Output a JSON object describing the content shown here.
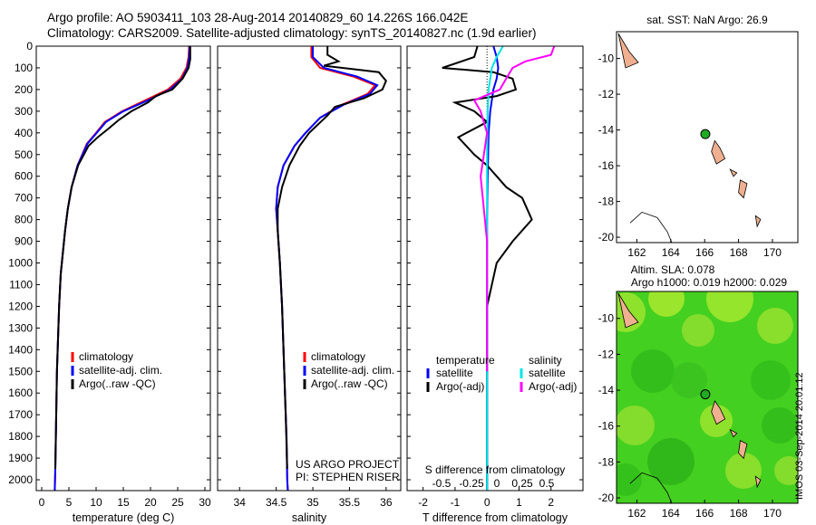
{
  "header": {
    "line1": "Argo profile: AO 5903411_103 28-Aug-2014 20140829_60 14.226S 166.042E",
    "line2": "Climatology: CARS2009. Satellite-adjusted climatology: synTS_20140827.nc (1.9d earlier)"
  },
  "stamp": "IMOS 03-Sep-2014 20:01:12",
  "colors": {
    "climatology": "#ff0000",
    "satellite": "#0000ff",
    "argo": "#000000",
    "sal_satellite": "#00e5e5",
    "sal_argo": "#ff00ff",
    "land": "#f0b090",
    "sla_field": "#44d020"
  },
  "chart_data": [
    {
      "type": "line",
      "panel": "temperature",
      "xlabel": "temperature (deg C)",
      "ylabel": "",
      "xlim": [
        -1,
        31
      ],
      "ylim": [
        2050,
        0
      ],
      "xticks": [
        0,
        5,
        10,
        15,
        20,
        25,
        30
      ],
      "yticks": [
        0,
        100,
        200,
        300,
        400,
        500,
        600,
        700,
        800,
        900,
        1000,
        1100,
        1200,
        1300,
        1400,
        1500,
        1600,
        1700,
        1800,
        1900,
        2000
      ],
      "legend": [
        "climatology",
        "satellite-adj. clim.",
        "Argo(..raw -QC)"
      ],
      "series": [
        {
          "name": "climatology",
          "color": "#ff0000",
          "x": [
            27.1,
            27.0,
            26.6,
            25.5,
            23.2,
            19.0,
            14.8,
            11.6,
            10.0,
            8.3,
            6.6,
            5.5,
            4.8,
            4.3,
            3.9,
            3.5,
            3.2,
            3.0,
            2.8,
            2.7,
            2.6,
            2.5,
            2.4,
            2.3
          ],
          "y": [
            0,
            50,
            100,
            150,
            200,
            250,
            300,
            350,
            400,
            450,
            550,
            650,
            750,
            850,
            950,
            1050,
            1200,
            1350,
            1500,
            1650,
            1800,
            1950,
            2050,
            2060
          ]
        },
        {
          "name": "satellite-adj. clim.",
          "color": "#0000ff",
          "x": [
            27.2,
            27.1,
            26.8,
            25.8,
            23.6,
            19.5,
            15.0,
            11.8,
            10.1,
            8.4,
            6.6,
            5.5,
            4.8,
            4.3,
            3.9,
            3.5,
            3.2,
            3.0,
            2.8,
            2.7,
            2.6,
            2.5,
            2.4,
            2.3
          ],
          "y": [
            0,
            50,
            100,
            150,
            200,
            250,
            300,
            350,
            400,
            450,
            550,
            650,
            750,
            850,
            950,
            1050,
            1200,
            1350,
            1500,
            1650,
            1800,
            1950,
            2050,
            2060
          ]
        },
        {
          "name": "Argo(..raw -QC)",
          "color": "#000000",
          "x": [
            27.3,
            27.3,
            27.0,
            25.9,
            24.0,
            21.0,
            19.5,
            16.5,
            14.2,
            12.3,
            10.3,
            8.6,
            6.7,
            5.5,
            4.8,
            4.3,
            3.9,
            3.5,
            3.2,
            3.0,
            2.8,
            2.7,
            2.6,
            2.5
          ],
          "y": [
            0,
            60,
            100,
            150,
            200,
            230,
            260,
            300,
            340,
            380,
            420,
            460,
            550,
            650,
            750,
            850,
            950,
            1050,
            1200,
            1350,
            1500,
            1650,
            1800,
            1950
          ]
        }
      ]
    },
    {
      "type": "line",
      "panel": "salinity",
      "xlabel": "salinity",
      "xlim": [
        33.7,
        36.2
      ],
      "ylim": [
        2050,
        0
      ],
      "xticks": [
        34,
        34.5,
        35,
        35.5,
        36
      ],
      "legend": [
        "climatology",
        "satellite-adj. clim.",
        "Argo(..raw -QC)"
      ],
      "annotation": [
        "US ARGO PROJECT",
        "PI: STEPHEN RISER"
      ],
      "series": [
        {
          "name": "climatology",
          "color": "#ff0000",
          "x": [
            34.98,
            34.98,
            35.1,
            35.55,
            35.85,
            35.75,
            35.4,
            35.1,
            34.9,
            34.75,
            34.6,
            34.52,
            34.5,
            34.52,
            34.55,
            34.58,
            34.6,
            34.62,
            34.64,
            34.65,
            34.66
          ],
          "y": [
            0,
            50,
            100,
            140,
            180,
            220,
            270,
            330,
            400,
            460,
            550,
            650,
            750,
            850,
            1000,
            1200,
            1400,
            1600,
            1800,
            2000,
            2060
          ]
        },
        {
          "name": "satellite-adj. clim.",
          "color": "#0000ff",
          "x": [
            35.0,
            35.0,
            35.15,
            35.6,
            35.88,
            35.78,
            35.42,
            35.1,
            34.9,
            34.75,
            34.6,
            34.52,
            34.5,
            34.52,
            34.55,
            34.58,
            34.6,
            34.62,
            34.64,
            34.65,
            34.66
          ],
          "y": [
            0,
            50,
            100,
            140,
            180,
            220,
            270,
            330,
            400,
            460,
            550,
            650,
            750,
            850,
            1000,
            1200,
            1400,
            1600,
            1800,
            2000,
            2060
          ]
        },
        {
          "name": "Argo(..raw -QC)",
          "color": "#000000",
          "x": [
            35.2,
            35.2,
            35.35,
            35.15,
            35.9,
            36.0,
            35.95,
            35.7,
            35.3,
            35.2,
            34.95,
            34.82,
            34.68,
            34.58,
            34.52,
            34.52,
            34.55,
            34.58,
            34.6,
            34.63,
            34.65
          ],
          "y": [
            0,
            40,
            70,
            90,
            120,
            160,
            200,
            240,
            280,
            320,
            400,
            460,
            550,
            650,
            750,
            850,
            1000,
            1200,
            1400,
            1700,
            1950
          ]
        }
      ]
    },
    {
      "type": "line",
      "panel": "difference",
      "xlabel": "T difference from climatology",
      "xlabel2": "S difference from climatology",
      "xlim": [
        -2.5,
        3.0
      ],
      "ylim": [
        2050,
        0
      ],
      "xticks": [
        -2,
        -1,
        0,
        1,
        2
      ],
      "xticks2": [
        "-0.5",
        "-0.25",
        "0",
        "0.25",
        "0.5"
      ],
      "legend_left_title": "temperature",
      "legend_right_title": "salinity",
      "legend_left": [
        "satellite",
        "Argo(-adj)"
      ],
      "legend_right": [
        "satellite",
        "Argo(-adj)"
      ],
      "series": [
        {
          "name": "satellite",
          "color": "#0000ff",
          "x": [
            0.2,
            0.3,
            0.35,
            0.3,
            0.2,
            0.1,
            0.05,
            0.02,
            0,
            0,
            0,
            0
          ],
          "y": [
            0,
            50,
            100,
            150,
            200,
            300,
            400,
            600,
            800,
            1200,
            1600,
            2050
          ]
        },
        {
          "name": "Argo(-adj)",
          "color": "#000000",
          "x": [
            -0.3,
            -0.4,
            -1.4,
            0.2,
            0.8,
            0.9,
            0.3,
            -1.0,
            -0.4,
            0.0,
            -0.9,
            -0.4,
            0.0,
            0.3,
            0.6,
            1.1,
            1.4,
            0.8,
            0.3,
            0.0,
            0.0,
            0.0
          ],
          "y": [
            0,
            50,
            100,
            120,
            150,
            200,
            230,
            260,
            300,
            350,
            420,
            500,
            550,
            600,
            650,
            700,
            800,
            900,
            1000,
            1200,
            1600,
            2050
          ]
        },
        {
          "name": "salinity satellite",
          "color": "#00e5e5",
          "x": [
            0.5,
            0.3,
            0.15,
            0.1,
            0.05,
            0.02,
            0,
            0,
            0,
            0
          ],
          "y": [
            0,
            50,
            100,
            150,
            200,
            300,
            500,
            800,
            1400,
            2050
          ]
        },
        {
          "name": "salinity Argo(-adj)",
          "color": "#ff00ff",
          "x": [
            2.1,
            2.0,
            1.2,
            0.8,
            0.6,
            0.4,
            -0.4,
            -0.2,
            0.0,
            -0.1,
            -0.2,
            0.0,
            0.0
          ],
          "y": [
            0,
            40,
            70,
            100,
            150,
            200,
            250,
            300,
            400,
            500,
            600,
            900,
            1500
          ]
        }
      ]
    },
    {
      "type": "map",
      "panel": "sst",
      "title": "sat. SST: NaN Argo: 26.9",
      "xlim": [
        160.8,
        171.5
      ],
      "ylim": [
        -20.3,
        -8.5
      ],
      "xticks": [
        162,
        164,
        166,
        168,
        170
      ],
      "yticks": [
        -10,
        -12,
        -14,
        -16,
        -18,
        -20
      ],
      "marker": {
        "lon": 166.04,
        "lat": -14.23
      }
    },
    {
      "type": "heatmap",
      "panel": "sla",
      "title": "Altim. SLA: 0.078",
      "subtitle": "Argo h1000: 0.019 h2000: 0.029",
      "xlim": [
        160.8,
        171.5
      ],
      "ylim": [
        -20.3,
        -8.5
      ],
      "xticks": [
        162,
        164,
        166,
        168,
        170
      ],
      "yticks": [
        -10,
        -12,
        -14,
        -16,
        -18,
        -20
      ],
      "marker": {
        "lon": 166.04,
        "lat": -14.23
      }
    }
  ]
}
